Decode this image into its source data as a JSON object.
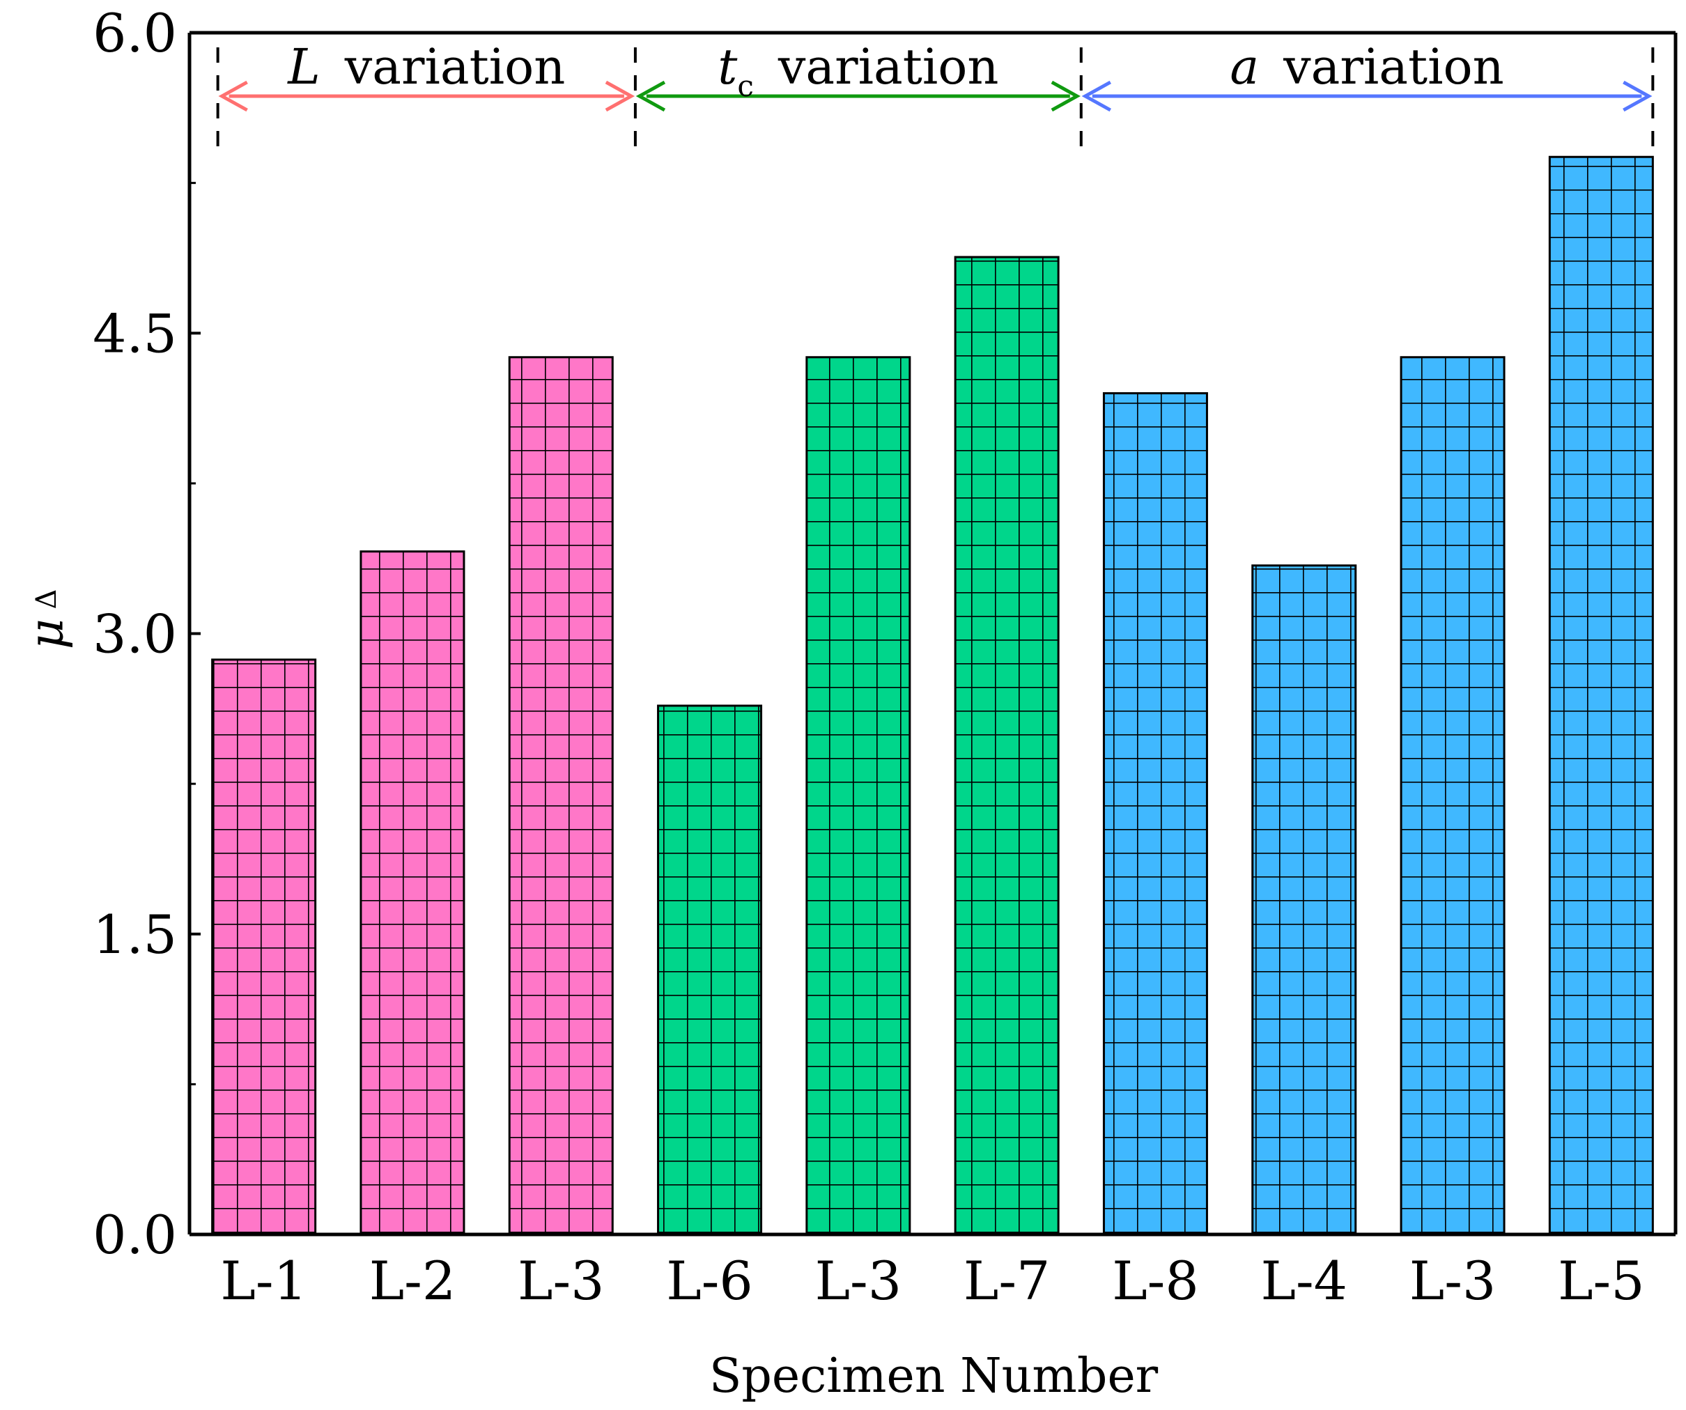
{
  "chart_data": {
    "type": "bar",
    "categories": [
      "L-1",
      "L-2",
      "L-3",
      "L-6",
      "L-3",
      "L-7",
      "L-8",
      "L-4",
      "L-3",
      "L-5"
    ],
    "values": [
      2.87,
      3.41,
      4.38,
      2.64,
      4.38,
      4.88,
      4.2,
      3.34,
      4.38,
      5.38
    ],
    "bar_colors": [
      "#ff77c8",
      "#ff77c8",
      "#ff77c8",
      "#00d68b",
      "#00d68b",
      "#00d68b",
      "#40b8ff",
      "#40b8ff",
      "#40b8ff",
      "#40b8ff"
    ],
    "bar_pattern": "grid",
    "xlabel": "Specimen Number",
    "ylabel": "μ",
    "ylabel_subscript": "Δ",
    "ylim": [
      0,
      6
    ],
    "yticks": [
      "0.0",
      "1.5",
      "3.0",
      "4.5",
      "6.0"
    ],
    "grid": false,
    "groups": [
      {
        "symbol": "L",
        "subscript": "",
        "label": "variation",
        "start_index": 0,
        "end_index": 2,
        "color": "#ff7070"
      },
      {
        "symbol": "t",
        "subscript": "c",
        "label": "variation",
        "start_index": 3,
        "end_index": 5,
        "color": "#109a10"
      },
      {
        "symbol": "a",
        "subscript": "",
        "label": "variation",
        "start_index": 6,
        "end_index": 9,
        "color": "#5577ff"
      }
    ]
  }
}
